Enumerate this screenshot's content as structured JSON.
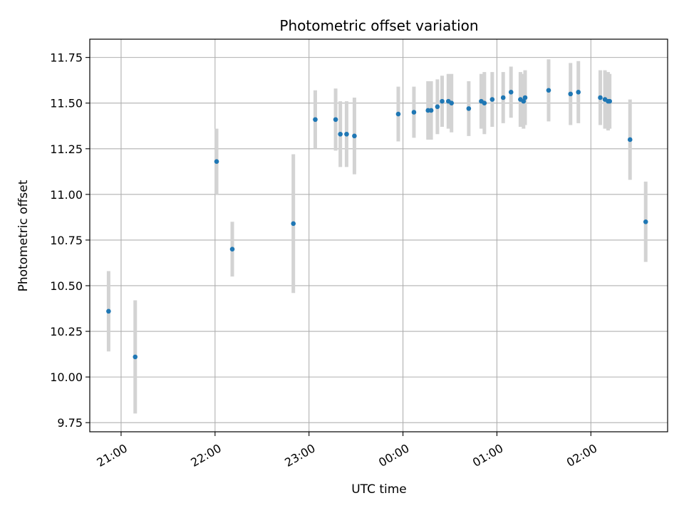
{
  "chart_data": {
    "type": "scatter",
    "title": "Photometric offset variation",
    "xlabel": "UTC time",
    "ylabel": "Photometric offset",
    "grid": true,
    "ylim": [
      9.7,
      11.85
    ],
    "xlim": [
      "20:40",
      "02:49"
    ],
    "y_ticks": [
      "9.75",
      "10.00",
      "10.25",
      "10.50",
      "10.75",
      "11.00",
      "11.25",
      "11.50",
      "11.75"
    ],
    "x_ticks": [
      "21:00",
      "22:00",
      "23:00",
      "00:00",
      "01:00",
      "02:00"
    ],
    "colors": {
      "point": "#1f77b4",
      "errorbar": "#d3d3d3",
      "grid": "#b0b0b0",
      "axes": "#000000"
    },
    "points": [
      {
        "t": "20:52",
        "y": 10.36,
        "err": 0.22
      },
      {
        "t": "21:09",
        "y": 10.11,
        "err": 0.31
      },
      {
        "t": "22:01",
        "y": 11.18,
        "err": 0.18
      },
      {
        "t": "22:11",
        "y": 10.7,
        "err": 0.15
      },
      {
        "t": "22:50",
        "y": 10.84,
        "err": 0.38
      },
      {
        "t": "23:04",
        "y": 11.41,
        "err": 0.16
      },
      {
        "t": "23:17",
        "y": 11.41,
        "err": 0.17
      },
      {
        "t": "23:20",
        "y": 11.33,
        "err": 0.18
      },
      {
        "t": "23:24",
        "y": 11.33,
        "err": 0.18
      },
      {
        "t": "23:29",
        "y": 11.32,
        "err": 0.21
      },
      {
        "t": "23:57",
        "y": 11.44,
        "err": 0.15
      },
      {
        "t": "00:07",
        "y": 11.45,
        "err": 0.14
      },
      {
        "t": "00:16",
        "y": 11.46,
        "err": 0.16
      },
      {
        "t": "00:18",
        "y": 11.46,
        "err": 0.16
      },
      {
        "t": "00:22",
        "y": 11.48,
        "err": 0.15
      },
      {
        "t": "00:25",
        "y": 11.51,
        "err": 0.14
      },
      {
        "t": "00:29",
        "y": 11.51,
        "err": 0.15
      },
      {
        "t": "00:31",
        "y": 11.5,
        "err": 0.16
      },
      {
        "t": "00:42",
        "y": 11.47,
        "err": 0.15
      },
      {
        "t": "00:50",
        "y": 11.51,
        "err": 0.15
      },
      {
        "t": "00:52",
        "y": 11.5,
        "err": 0.17
      },
      {
        "t": "00:57",
        "y": 11.52,
        "err": 0.15
      },
      {
        "t": "01:04",
        "y": 11.53,
        "err": 0.14
      },
      {
        "t": "01:09",
        "y": 11.56,
        "err": 0.14
      },
      {
        "t": "01:15",
        "y": 11.52,
        "err": 0.15
      },
      {
        "t": "01:17",
        "y": 11.51,
        "err": 0.15
      },
      {
        "t": "01:18",
        "y": 11.53,
        "err": 0.15
      },
      {
        "t": "01:33",
        "y": 11.57,
        "err": 0.17
      },
      {
        "t": "01:47",
        "y": 11.55,
        "err": 0.17
      },
      {
        "t": "01:52",
        "y": 11.56,
        "err": 0.17
      },
      {
        "t": "02:06",
        "y": 11.53,
        "err": 0.15
      },
      {
        "t": "02:09",
        "y": 11.52,
        "err": 0.16
      },
      {
        "t": "02:11",
        "y": 11.51,
        "err": 0.16
      },
      {
        "t": "02:12",
        "y": 11.51,
        "err": 0.15
      },
      {
        "t": "02:25",
        "y": 11.3,
        "err": 0.22
      },
      {
        "t": "02:35",
        "y": 10.85,
        "err": 0.22
      }
    ]
  }
}
